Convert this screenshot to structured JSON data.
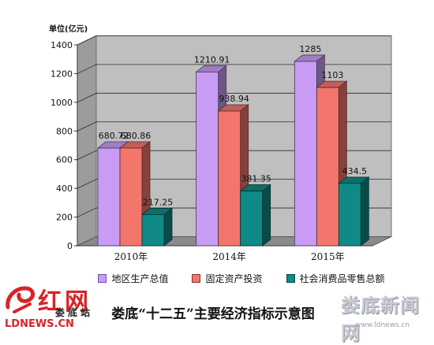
{
  "chart_data": {
    "type": "bar",
    "unit_label": "单位(亿元)",
    "categories": [
      "2010年",
      "2014年",
      "2015年"
    ],
    "series": [
      {
        "name": "地区生产总值",
        "values": [
          680.72,
          1210.91,
          1285
        ],
        "labels": [
          "680.72",
          "1210.91",
          "1285"
        ],
        "color": "#c89cf4"
      },
      {
        "name": "固定资产投资",
        "values": [
          680.86,
          938.94,
          1103
        ],
        "labels": [
          "680.86",
          "938.94",
          "1103"
        ],
        "color": "#f2766c"
      },
      {
        "name": "社会消费品零售总额",
        "values": [
          217.25,
          381.35,
          434.5
        ],
        "labels": [
          "217.25",
          "381.35",
          "434.5"
        ],
        "color": "#0f8a86"
      }
    ],
    "yticks": [
      "0",
      "200",
      "400",
      "600",
      "800",
      "1000",
      "1200",
      "1400"
    ],
    "ylim": [
      0,
      1400
    ],
    "grid": true,
    "legend_position": "bottom"
  },
  "caption": "娄底“十二五”主要经济指标示意图",
  "watermark_left": {
    "brand": "红网",
    "station": "娄底站",
    "domain": "LDNEWS.CN"
  },
  "watermark_right": {
    "brand": "娄底新闻网",
    "url": "www.ldnews.cn"
  }
}
